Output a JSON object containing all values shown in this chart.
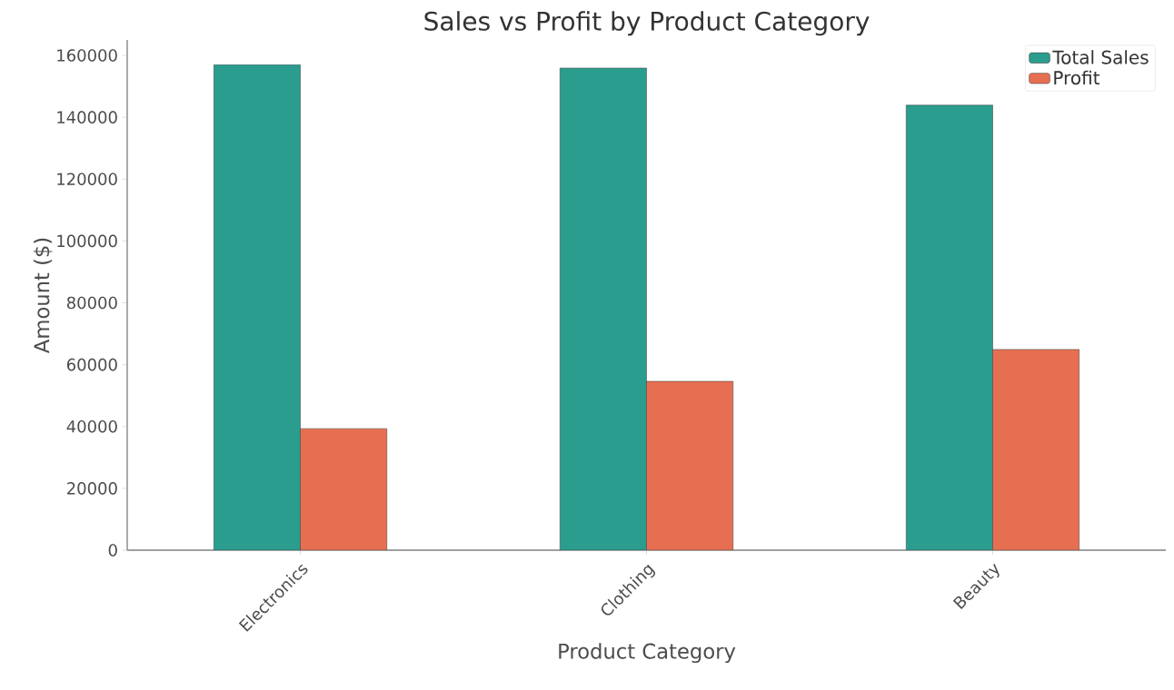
{
  "chart_data": {
    "type": "bar",
    "title": "Sales vs Profit by Product Category",
    "xlabel": "Product Category",
    "ylabel": "Amount ($)",
    "categories": [
      "Electronics",
      "Clothing",
      "Beauty"
    ],
    "series": [
      {
        "name": "Total Sales",
        "color": "#2a9d8f",
        "values": [
          157000,
          155900,
          143900
        ]
      },
      {
        "name": "Profit",
        "color": "#e76f51",
        "values": [
          39300,
          54600,
          64900
        ]
      }
    ],
    "ylim": [
      0,
      165000
    ],
    "yticks": [
      0,
      20000,
      40000,
      60000,
      80000,
      100000,
      120000,
      140000,
      160000
    ],
    "legend": "top right",
    "grid": false
  }
}
